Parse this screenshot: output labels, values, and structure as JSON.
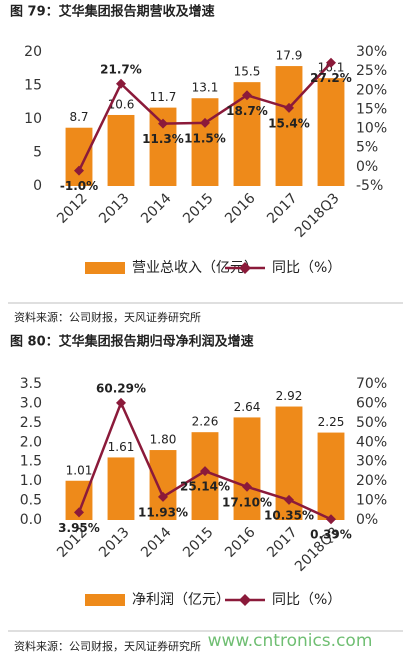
{
  "chart_data": [
    {
      "type": "combo",
      "title": "图 79：艾华集团报告期营收及增速",
      "categories": [
        "2012",
        "2013",
        "2014",
        "2015",
        "2016",
        "2017",
        "2018Q3"
      ],
      "series": [
        {
          "name": "营业总收入（亿元）",
          "type": "bar",
          "color": "#ee8a1a",
          "values": [
            8.7,
            10.6,
            11.7,
            13.1,
            15.5,
            17.9,
            16.1
          ]
        },
        {
          "name": "同比（%）",
          "type": "line",
          "axis": "y2",
          "color": "#8b1a3a",
          "values": [
            -1.0,
            21.7,
            11.3,
            11.5,
            18.7,
            15.4,
            27.2
          ],
          "value_labels": [
            "-1.0%",
            "21.7%",
            "11.3%",
            "11.5%",
            "18.7%",
            "15.4%",
            "27.2%"
          ]
        }
      ],
      "ylim": [
        0,
        20
      ],
      "yticks": [
        0,
        5,
        10,
        15,
        20
      ],
      "y2lim": [
        -5,
        30
      ],
      "y2ticks": [
        {
          "value": -5,
          "label": "-5%"
        },
        {
          "value": 0,
          "label": "0%"
        },
        {
          "value": 5,
          "label": "5%"
        },
        {
          "value": 10,
          "label": "10%"
        },
        {
          "value": 15,
          "label": "15%"
        },
        {
          "value": 20,
          "label": "20%"
        },
        {
          "value": 25,
          "label": "25%"
        },
        {
          "value": 30,
          "label": "30%"
        }
      ],
      "source": "资料来源：公司财报，天风证券研究所"
    },
    {
      "type": "combo",
      "title": "图 80：艾华集团报告期归母净利润及增速",
      "categories": [
        "2012",
        "2013",
        "2014",
        "2015",
        "2016",
        "2017",
        "2018Q3"
      ],
      "series": [
        {
          "name": "净利润（亿元）",
          "type": "bar",
          "color": "#ee8a1a",
          "values": [
            1.01,
            1.61,
            1.8,
            2.26,
            2.64,
            2.92,
            2.25
          ],
          "value_labels": [
            "1.01",
            "1.61",
            "1.80",
            "2.26",
            "2.64",
            "2.92",
            "2.25"
          ]
        },
        {
          "name": "同比（%）",
          "type": "line",
          "axis": "y2",
          "color": "#8b1a3a",
          "values": [
            3.95,
            60.29,
            11.93,
            25.14,
            17.1,
            10.35,
            0.39
          ],
          "value_labels": [
            "3.95%",
            "60.29%",
            "11.93%",
            "25.14%",
            "17.10%",
            "10.35%",
            "0.39%"
          ]
        }
      ],
      "ylim": [
        0,
        3.5
      ],
      "yticks": [
        {
          "value": 0,
          "label": "0.0"
        },
        {
          "value": 0.5,
          "label": "0.5"
        },
        {
          "value": 1,
          "label": "1.0"
        },
        {
          "value": 1.5,
          "label": "1.5"
        },
        {
          "value": 2,
          "label": "2.0"
        },
        {
          "value": 2.5,
          "label": "2.5"
        },
        {
          "value": 3,
          "label": "3.0"
        },
        {
          "value": 3.5,
          "label": "3.5"
        }
      ],
      "y2lim": [
        0,
        70
      ],
      "y2ticks": [
        {
          "value": 0,
          "label": "0%"
        },
        {
          "value": 10,
          "label": "10%"
        },
        {
          "value": 20,
          "label": "20%"
        },
        {
          "value": 30,
          "label": "30%"
        },
        {
          "value": 40,
          "label": "40%"
        },
        {
          "value": 50,
          "label": "50%"
        },
        {
          "value": 60,
          "label": "60%"
        },
        {
          "value": 70,
          "label": "70%"
        }
      ],
      "source": "资料来源：公司财报，天风证券研究所"
    }
  ],
  "watermark": "www.cntronics.com"
}
